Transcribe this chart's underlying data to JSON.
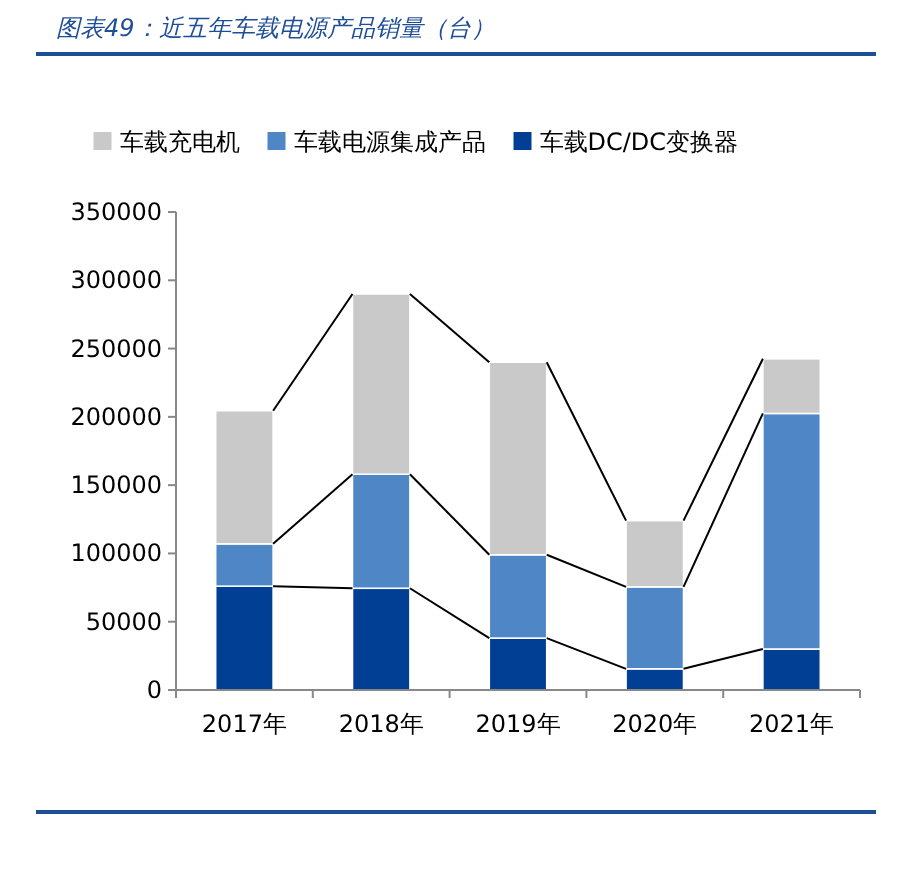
{
  "chart_data": {
    "type": "bar",
    "stacked": true,
    "title": "图表49：近五年车载电源产品销量（台）",
    "categories": [
      "2017年",
      "2018年",
      "2019年",
      "2020年",
      "2021年"
    ],
    "series": [
      {
        "name": "车载DC/DC变换器",
        "color": "#003f94",
        "values": [
          76000,
          74500,
          38000,
          15500,
          30000
        ]
      },
      {
        "name": "车载电源集成产品",
        "color": "#4f86c6",
        "values": [
          31000,
          83500,
          61000,
          60000,
          172500
        ]
      },
      {
        "name": "车载充电机",
        "color": "#c9c9c9",
        "values": [
          97500,
          132000,
          141000,
          48500,
          40000
        ]
      }
    ],
    "ylim": [
      0,
      350000
    ],
    "yticks": [
      0,
      50000,
      100000,
      150000,
      200000,
      250000,
      300000,
      350000
    ],
    "grid": false,
    "legend": "top"
  }
}
